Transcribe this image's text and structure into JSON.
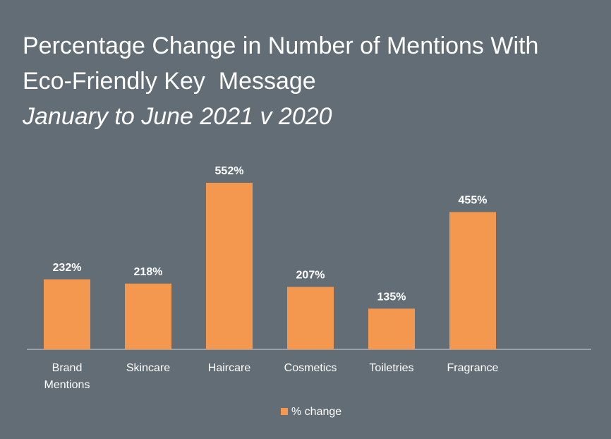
{
  "title_lines": [
    "Percentage Change in Number of Mentions With",
    "Eco-Friendly Key  Message"
  ],
  "subtitle": "January to June 2021 v 2020",
  "colors": {
    "background": "#636d76",
    "bar": "#f4984f",
    "text": "#ffffff",
    "axis": "#d0d4d8"
  },
  "chart_data": {
    "type": "bar",
    "categories": [
      [
        "Brand",
        "Mentions"
      ],
      [
        "Skincare"
      ],
      [
        "Haircare"
      ],
      [
        "Cosmetics"
      ],
      [
        "Toiletries"
      ],
      [
        "Fragrance"
      ]
    ],
    "series": [
      {
        "name": "% change",
        "values": [
          232,
          218,
          552,
          207,
          135,
          455
        ],
        "labels": [
          "232%",
          "218%",
          "552%",
          "207%",
          "135%",
          "455%"
        ]
      }
    ],
    "ylim": [
      0,
      600
    ],
    "grid": false,
    "legend_position": "bottom"
  }
}
